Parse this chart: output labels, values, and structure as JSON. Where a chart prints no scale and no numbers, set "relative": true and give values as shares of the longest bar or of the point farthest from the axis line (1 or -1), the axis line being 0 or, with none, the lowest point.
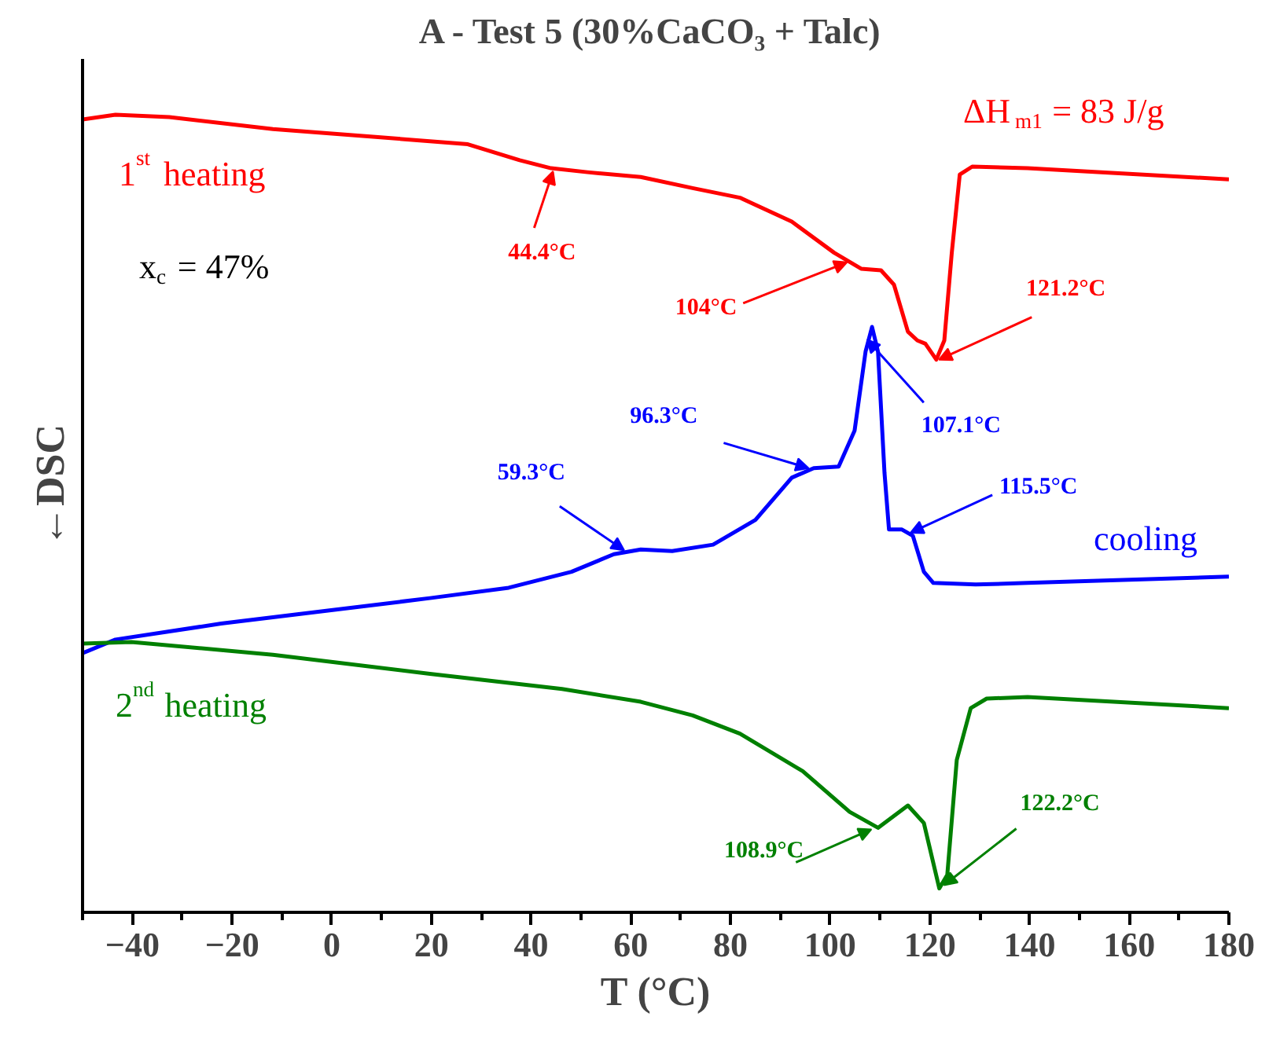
{
  "chart_data": {
    "type": "line",
    "relative": true,
    "title": "A - Test  5 (30%CaCO₃ + Talc)",
    "xlabel": "T (°C)",
    "ylabel": "←DSC",
    "xlim": [
      -50,
      180
    ],
    "xticks": [
      {
        "value": -50,
        "label": null
      },
      -40,
      {
        "value": -30,
        "label": null
      },
      -20,
      {
        "value": -10,
        "label": null
      },
      0,
      {
        "value": 10,
        "label": null
      },
      20,
      {
        "value": 30,
        "label": null
      },
      40,
      {
        "value": 50,
        "label": null
      },
      60,
      {
        "value": 70,
        "label": null
      },
      80,
      {
        "value": 90,
        "label": null
      },
      100,
      {
        "value": 110,
        "label": null
      },
      120,
      {
        "value": 130,
        "label": null
      },
      140,
      {
        "value": 150,
        "label": null
      },
      160,
      {
        "value": 170,
        "label": null
      },
      180
    ],
    "series": [
      {
        "name": "1$^{st}$ heating",
        "color": "#ff0000",
        "x": [
          -50,
          -43.4,
          -32.6,
          -11.8,
          9.3,
          27.3,
          37.7,
          44,
          51.3,
          62,
          72.4,
          81.9,
          92.3,
          100.8,
          106.2,
          110.2,
          112.8,
          115.6,
          117.5,
          119.1,
          121.3,
          122.9,
          124.4,
          126,
          128.5,
          139.6,
          180
        ],
        "values": [
          0.994,
          1.0,
          0.997,
          0.982,
          0.972,
          0.963,
          0.943,
          0.933,
          0.928,
          0.922,
          0.908,
          0.896,
          0.866,
          0.827,
          0.807,
          0.805,
          0.787,
          0.728,
          0.717,
          0.713,
          0.693,
          0.717,
          0.827,
          0.925,
          0.935,
          0.933,
          0.919
        ]
      },
      {
        "name": "cooling",
        "color": "#0000ff",
        "x": [
          -50,
          -43.4,
          -22.2,
          -1.1,
          19.7,
          35.5,
          48.1,
          56.6,
          62,
          68.3,
          76.5,
          85,
          92.3,
          96.7,
          101.7,
          104.9,
          107.1,
          108.4,
          109.6,
          110.9,
          111.8,
          114.4,
          116.6,
          118.8,
          120.7,
          129.2,
          139.6,
          180
        ],
        "values": [
          0.325,
          0.342,
          0.362,
          0.378,
          0.394,
          0.407,
          0.427,
          0.449,
          0.455,
          0.453,
          0.461,
          0.492,
          0.545,
          0.557,
          0.559,
          0.604,
          0.703,
          0.734,
          0.703,
          0.551,
          0.48,
          0.48,
          0.472,
          0.427,
          0.413,
          0.411,
          0.413,
          0.421
        ]
      },
      {
        "name": "2$^{nd}$ heating",
        "color": "#008000",
        "x": [
          -50,
          -40.2,
          -11.8,
          19.7,
          46.2,
          62,
          72.4,
          81.9,
          94.5,
          103.9,
          109.6,
          115.6,
          118.8,
          121.9,
          123.5,
          125.4,
          128.2,
          131.4,
          139.6,
          180
        ],
        "values": [
          0.337,
          0.339,
          0.323,
          0.299,
          0.28,
          0.264,
          0.247,
          0.224,
          0.177,
          0.126,
          0.106,
          0.134,
          0.112,
          0.03,
          0.047,
          0.191,
          0.256,
          0.268,
          0.27,
          0.256
        ]
      }
    ],
    "annotations": [
      {
        "text": "44.4°C",
        "x": 44.4,
        "y": 0.933
      },
      {
        "text": "104°C",
        "x": 104,
        "y": 0.815
      },
      {
        "text": "121.2°C",
        "x": 121.2,
        "y": 0.693
      },
      {
        "text": "107.1°C",
        "x": 107.1,
        "y": 0.72
      },
      {
        "text": "115.5°C",
        "x": 115.5,
        "y": 0.476
      },
      {
        "text": "96.3°C",
        "x": 96.3,
        "y": 0.557
      },
      {
        "text": "59.3°C",
        "x": 59.3,
        "y": 0.452
      },
      {
        "text": "108.9°C",
        "x": 108.9,
        "y": 0.106
      },
      {
        "text": "122.2°C",
        "x": 122.2,
        "y": 0.03
      },
      "x$_{c}$ = 47%",
      "ΔH$_{m1}$ = 83 J/g"
    ]
  }
}
